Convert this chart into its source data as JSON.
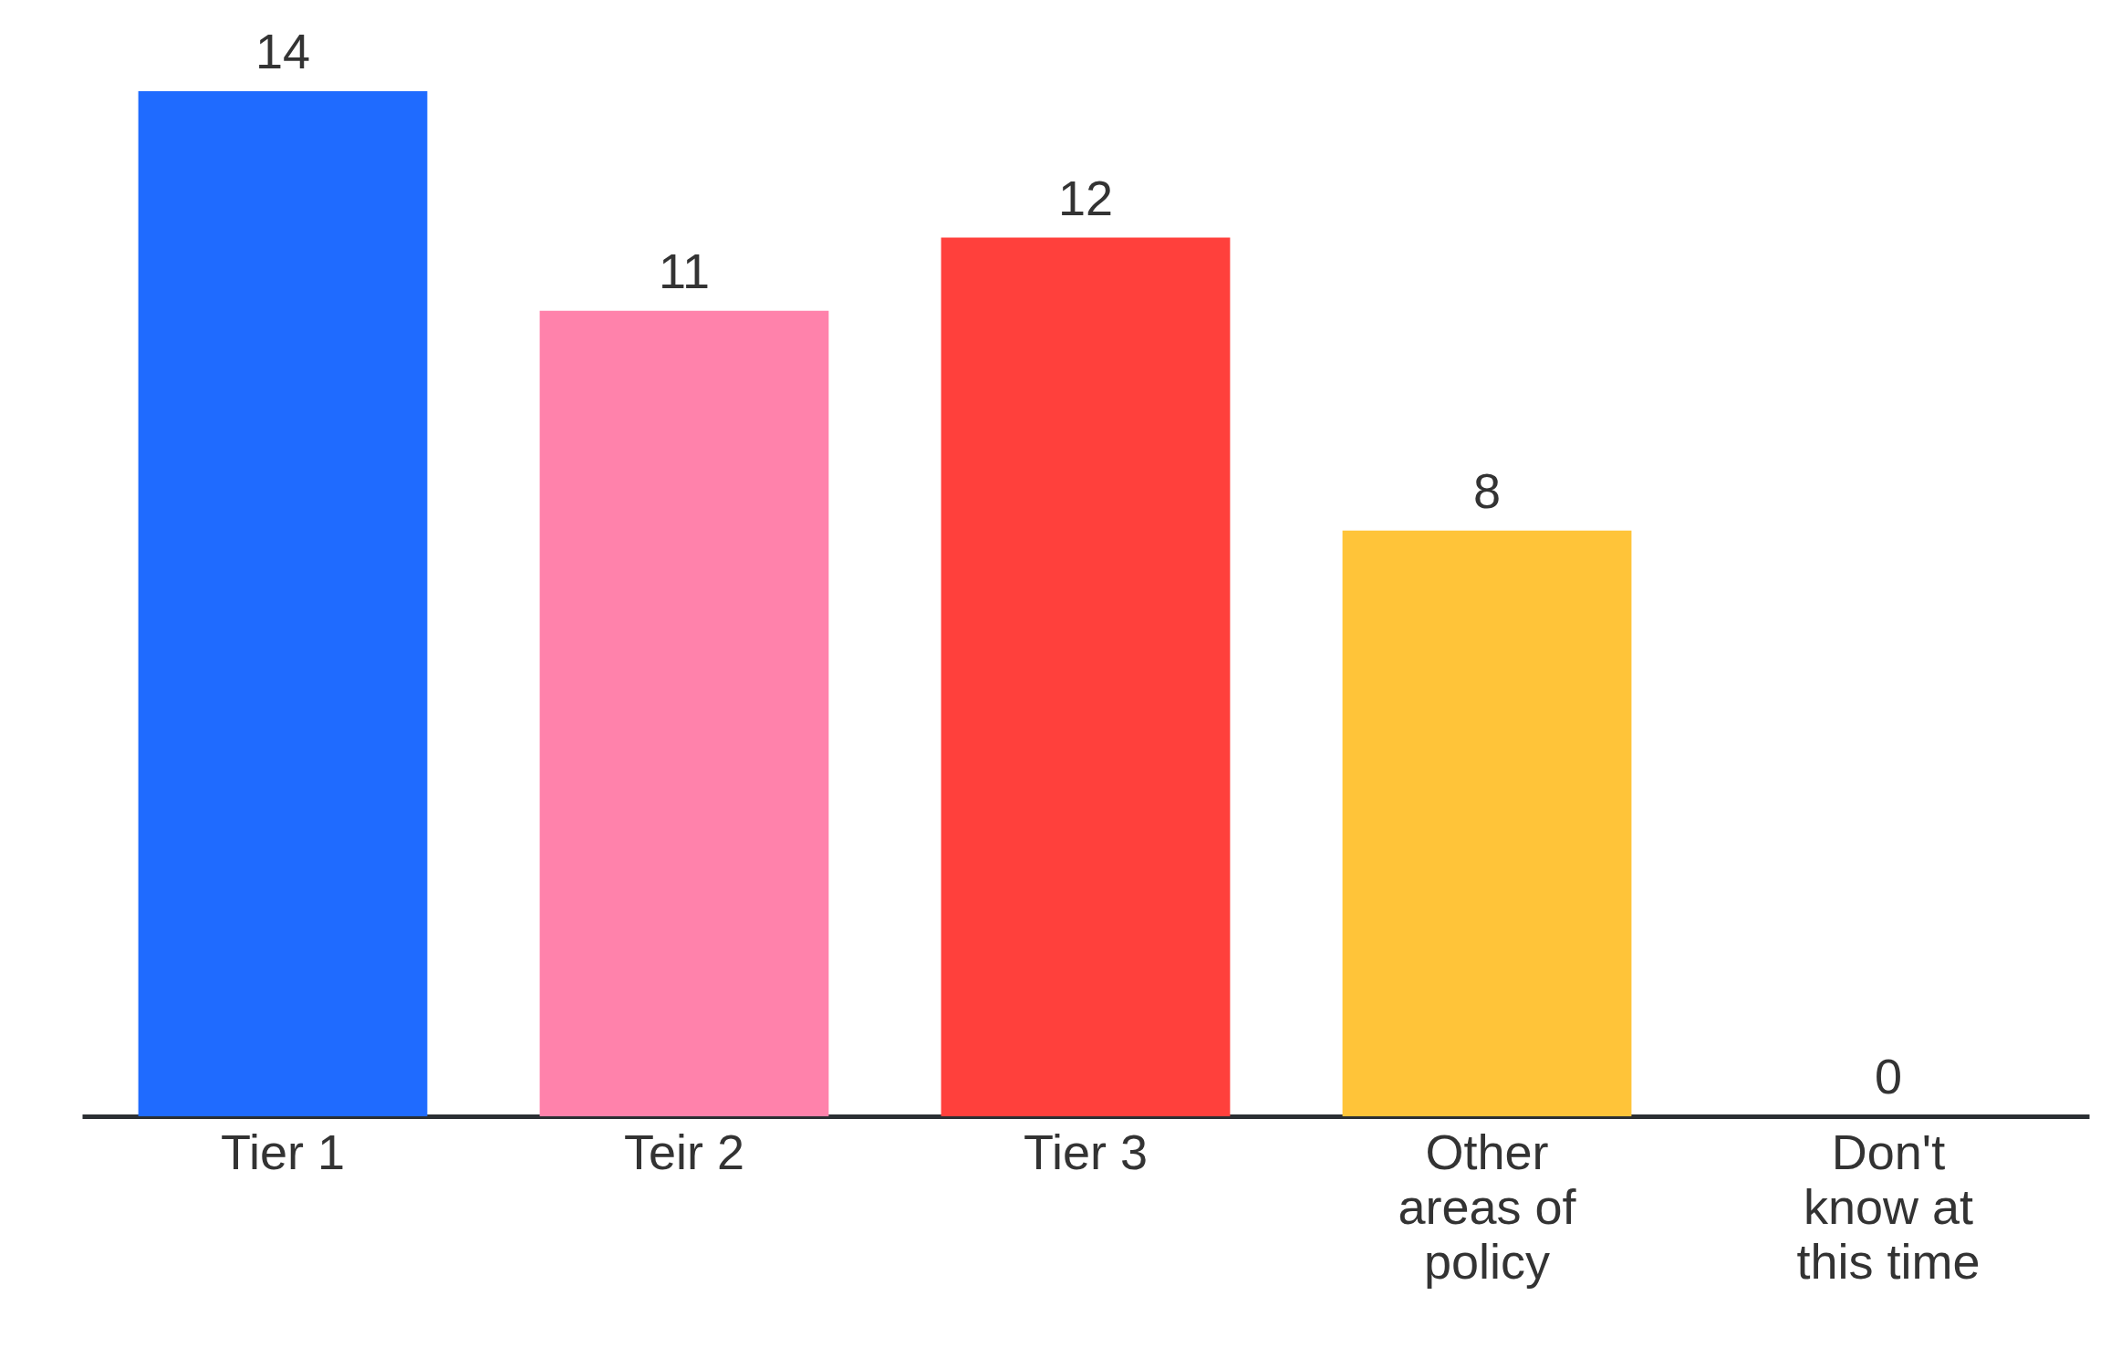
{
  "chart_data": {
    "type": "bar",
    "categories": [
      "Tier 1",
      "Teir 2",
      "Tier 3",
      "Other areas of policy",
      "Don't know at this time"
    ],
    "values": [
      14,
      11,
      12,
      8,
      0
    ],
    "colors": [
      "#1f6bff",
      "#ff82ab",
      "#ff403c",
      "#ffc439",
      "#ffc439"
    ],
    "data_labels": true
  }
}
